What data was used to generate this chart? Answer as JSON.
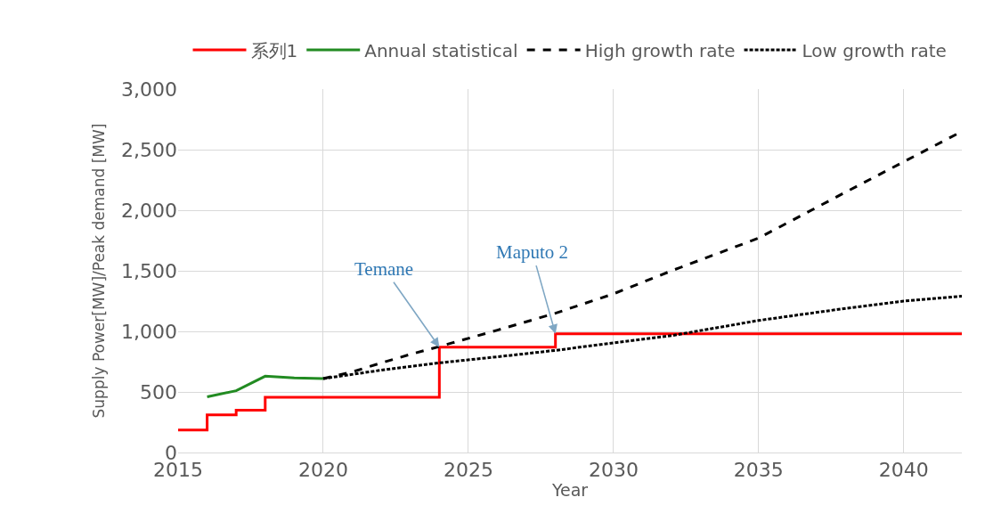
{
  "chart_data": {
    "type": "line",
    "xlabel": "Year",
    "ylabel": "Supply Power[MW]/Peak demand [MW]",
    "series": [
      {
        "name": "系列1",
        "type": "step",
        "color": "#ff0000",
        "x": [
          2015,
          2016,
          2017,
          2018,
          2024,
          2028,
          2042
        ],
        "values": [
          185,
          310,
          350,
          455,
          870,
          980,
          980
        ]
      },
      {
        "name": "Annual statistical",
        "color": "#228b22",
        "x": [
          2016,
          2017,
          2018,
          2019,
          2020
        ],
        "values": [
          460,
          510,
          630,
          615,
          610
        ]
      },
      {
        "name": "High growth rate",
        "color": "#000000",
        "line_style": "dashed",
        "x": [
          2020,
          2021,
          2022,
          2023,
          2024,
          2026,
          2028,
          2030,
          2032,
          2035,
          2038,
          2040,
          2042
        ],
        "values": [
          610,
          665,
          740,
          810,
          875,
          1010,
          1150,
          1310,
          1500,
          1770,
          2150,
          2400,
          2650
        ]
      },
      {
        "name": "Low growth rate",
        "color": "#000000",
        "line_style": "dotted",
        "x": [
          2020,
          2022,
          2024,
          2026,
          2028,
          2030,
          2032,
          2035,
          2038,
          2040,
          2042
        ],
        "values": [
          610,
          680,
          740,
          790,
          843,
          905,
          965,
          1090,
          1190,
          1250,
          1290
        ]
      }
    ],
    "annotations": [
      {
        "text": "Temane",
        "x": 2024,
        "y": 870
      },
      {
        "text": "Maputo 2",
        "x": 2028,
        "y": 980
      }
    ],
    "xlim": [
      2015,
      2042
    ],
    "xticks": [
      2015,
      2020,
      2025,
      2030,
      2035,
      2040
    ],
    "ylim": [
      0,
      3000
    ],
    "yticks": [
      0,
      500,
      {
        "value": 1000,
        "label": "1,000"
      },
      {
        "value": 1500,
        "label": "1,500"
      },
      {
        "value": 2000,
        "label": "2,000"
      },
      {
        "value": 2500,
        "label": "2,500"
      },
      {
        "value": 3000,
        "label": "3,000"
      }
    ],
    "grid": true,
    "legend": "top"
  }
}
